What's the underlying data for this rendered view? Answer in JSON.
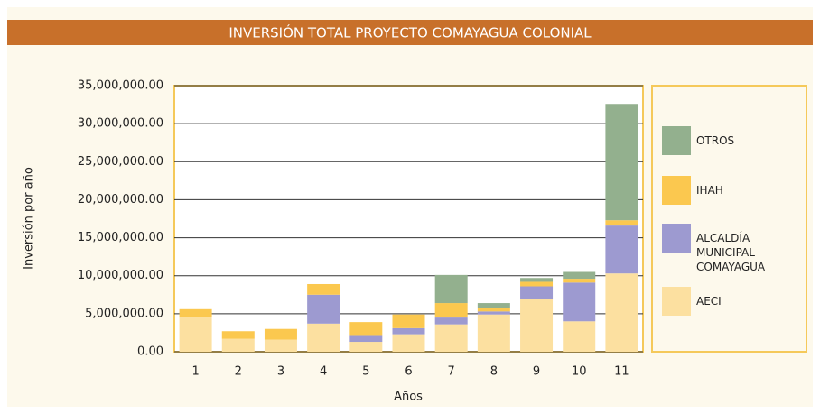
{
  "chart_data": {
    "type": "stacked_bar",
    "title": "INVERSIÓN TOTAL PROYECTO COMAYAGUA COLONIAL",
    "x_label": "Años",
    "y_label": "Inversión por año",
    "categories": [
      "1",
      "2",
      "3",
      "4",
      "5",
      "6",
      "7",
      "8",
      "9",
      "10",
      "11"
    ],
    "series": [
      {
        "name": "AECI",
        "color": "#fce0a0",
        "values": [
          4.6,
          1.7,
          1.6,
          3.7,
          1.3,
          2.3,
          3.6,
          4.9,
          6.9,
          4.0,
          10.3
        ]
      },
      {
        "name": "ALCALDÍA MUNICIPAL COMAYAGUA",
        "color": "#9d9ad0",
        "values": [
          0,
          0,
          0,
          3.8,
          0.9,
          0.8,
          0.9,
          0.4,
          1.7,
          5.1,
          6.3
        ]
      },
      {
        "name": "IHAH",
        "color": "#fbc84f",
        "values": [
          1.0,
          1.0,
          1.4,
          1.4,
          1.7,
          1.8,
          1.9,
          0.4,
          0.6,
          0.5,
          0.7
        ]
      },
      {
        "name": "OTROS",
        "color": "#93b08e",
        "values": [
          0,
          0,
          0,
          0,
          0,
          0,
          3.7,
          0.7,
          0.5,
          0.9,
          15.3
        ]
      }
    ],
    "value_unit": "millions",
    "ylim": [
      0,
      35
    ],
    "yticks": [
      {
        "value": 0,
        "label": "0.00"
      },
      {
        "value": 5,
        "label": "5,000,000.00"
      },
      {
        "value": 10,
        "label": "10,000,000.00"
      },
      {
        "value": 15,
        "label": "15,000,000.00"
      },
      {
        "value": 20,
        "label": "20,000,000.00"
      },
      {
        "value": 25,
        "label": "25,000,000.00"
      },
      {
        "value": 30,
        "label": "30,000,000.00"
      },
      {
        "value": 35,
        "label": "35,000,000.00"
      }
    ],
    "grid": true
  }
}
